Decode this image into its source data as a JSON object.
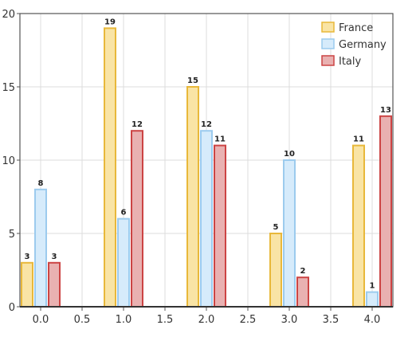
{
  "chart_data": {
    "type": "bar",
    "x": [
      0,
      1,
      2,
      3,
      4
    ],
    "series": [
      {
        "name": "France",
        "values": [
          3,
          19,
          15,
          5,
          11
        ],
        "fill": "#f9e4a5",
        "stroke": "#e8b83a"
      },
      {
        "name": "Germany",
        "values": [
          8,
          6,
          12,
          10,
          1
        ],
        "fill": "#d6ebfb",
        "stroke": "#9ccbee"
      },
      {
        "name": "Italy",
        "values": [
          3,
          12,
          11,
          2,
          13
        ],
        "fill": "#e9b1b1",
        "stroke": "#cc4444"
      }
    ],
    "xlim": [
      -0.25,
      4.25
    ],
    "ylim": [
      0,
      20
    ],
    "xticks": [
      "0.0",
      "0.5",
      "1.0",
      "1.5",
      "2.0",
      "2.5",
      "3.0",
      "3.5",
      "4.0"
    ],
    "yticks": [
      "0",
      "5",
      "10",
      "15",
      "20"
    ],
    "title": "",
    "xlabel": "",
    "ylabel": "",
    "grid": true,
    "legend_position": "top-right",
    "data_labels": true
  }
}
